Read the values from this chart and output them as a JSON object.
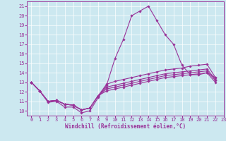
{
  "xlabel": "Windchill (Refroidissement éolien,°C)",
  "background_color": "#cce8f0",
  "line_color": "#993399",
  "xlim": [
    -0.5,
    23
  ],
  "ylim": [
    9.5,
    21.5
  ],
  "yticks": [
    10,
    11,
    12,
    13,
    14,
    15,
    16,
    17,
    18,
    19,
    20,
    21
  ],
  "xticks": [
    0,
    1,
    2,
    3,
    4,
    5,
    6,
    7,
    8,
    9,
    10,
    11,
    12,
    13,
    14,
    15,
    16,
    17,
    18,
    19,
    20,
    21,
    22,
    23
  ],
  "series": [
    [
      13.0,
      12.1,
      10.9,
      11.0,
      10.4,
      10.4,
      9.8,
      10.0,
      11.4,
      12.7,
      15.5,
      17.5,
      20.0,
      20.5,
      21.0,
      19.5,
      18.0,
      17.0,
      14.8,
      13.8,
      13.8,
      14.0,
      13.5
    ],
    [
      13.0,
      12.1,
      11.0,
      11.1,
      10.7,
      10.6,
      10.1,
      10.3,
      11.6,
      12.8,
      13.1,
      13.3,
      13.5,
      13.7,
      13.9,
      14.1,
      14.3,
      14.4,
      14.5,
      14.7,
      14.8,
      14.9,
      13.5
    ],
    [
      13.0,
      12.1,
      11.0,
      11.1,
      10.7,
      10.6,
      10.1,
      10.3,
      11.6,
      12.5,
      12.7,
      12.9,
      13.1,
      13.3,
      13.5,
      13.7,
      13.9,
      14.0,
      14.1,
      14.2,
      14.3,
      14.4,
      13.3
    ],
    [
      13.0,
      12.1,
      11.0,
      11.1,
      10.7,
      10.6,
      10.1,
      10.3,
      11.6,
      12.3,
      12.5,
      12.7,
      12.9,
      13.1,
      13.3,
      13.5,
      13.7,
      13.8,
      13.9,
      14.0,
      14.1,
      14.2,
      13.2
    ],
    [
      13.0,
      12.1,
      11.0,
      11.1,
      10.7,
      10.6,
      10.1,
      10.3,
      11.6,
      12.1,
      12.3,
      12.5,
      12.7,
      12.9,
      13.1,
      13.3,
      13.5,
      13.6,
      13.7,
      13.8,
      13.9,
      14.0,
      13.0
    ]
  ],
  "marker": "D",
  "marker_size": 1.8,
  "linewidth": 0.8,
  "xlabel_fontsize": 5.5,
  "tick_fontsize": 5.0,
  "grid_color": "#ffffff",
  "spine_color": "#993399"
}
